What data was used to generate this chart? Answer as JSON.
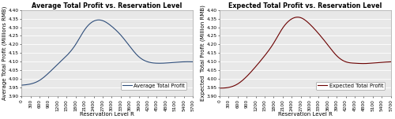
{
  "title_left": "Average Total Profit vs. Reservation Level",
  "title_right": "Expected Total Profit vs. Reservation Level",
  "xlabel": "Reservation Level R",
  "ylabel_left": "Average Total Profit (Millions RMB)",
  "ylabel_right": "Expected  Total Profit (Million RMB)",
  "legend_left": "Average Total Profit",
  "legend_right": "Expected Total Profit",
  "line_color_left": "#2E4D7A",
  "line_color_right": "#6B0000",
  "x_ticks": [
    0,
    300,
    600,
    900,
    1200,
    1500,
    1800,
    2100,
    2400,
    2700,
    3000,
    3300,
    3600,
    3900,
    4200,
    4500,
    4800,
    5100,
    5400,
    5700
  ],
  "ylim": [
    3.9,
    4.4
  ],
  "yticks": [
    3.9,
    3.95,
    4.0,
    4.05,
    4.1,
    4.15,
    4.2,
    4.25,
    4.3,
    4.35,
    4.4
  ],
  "bg_color": "#E8E8E8",
  "fig_bg": "#FFFFFF",
  "title_fontsize": 5.8,
  "label_fontsize": 5.0,
  "tick_fontsize": 4.2,
  "legend_fontsize": 4.8,
  "y_left_data": [
    3.965,
    3.972,
    3.993,
    4.035,
    4.085,
    4.135,
    4.2,
    4.285,
    4.335,
    4.338,
    4.305,
    4.255,
    4.19,
    4.13,
    4.1,
    4.092,
    4.093,
    4.097,
    4.1,
    4.1
  ],
  "y_right_data": [
    3.948,
    3.952,
    3.972,
    4.015,
    4.072,
    4.135,
    4.208,
    4.295,
    4.348,
    4.355,
    4.318,
    4.262,
    4.198,
    4.135,
    4.1,
    4.092,
    4.09,
    4.093,
    4.097,
    4.1
  ],
  "x_data": [
    0,
    300,
    600,
    900,
    1200,
    1500,
    1800,
    2100,
    2400,
    2700,
    3000,
    3300,
    3600,
    3900,
    4200,
    4500,
    4800,
    5100,
    5400,
    5700
  ]
}
